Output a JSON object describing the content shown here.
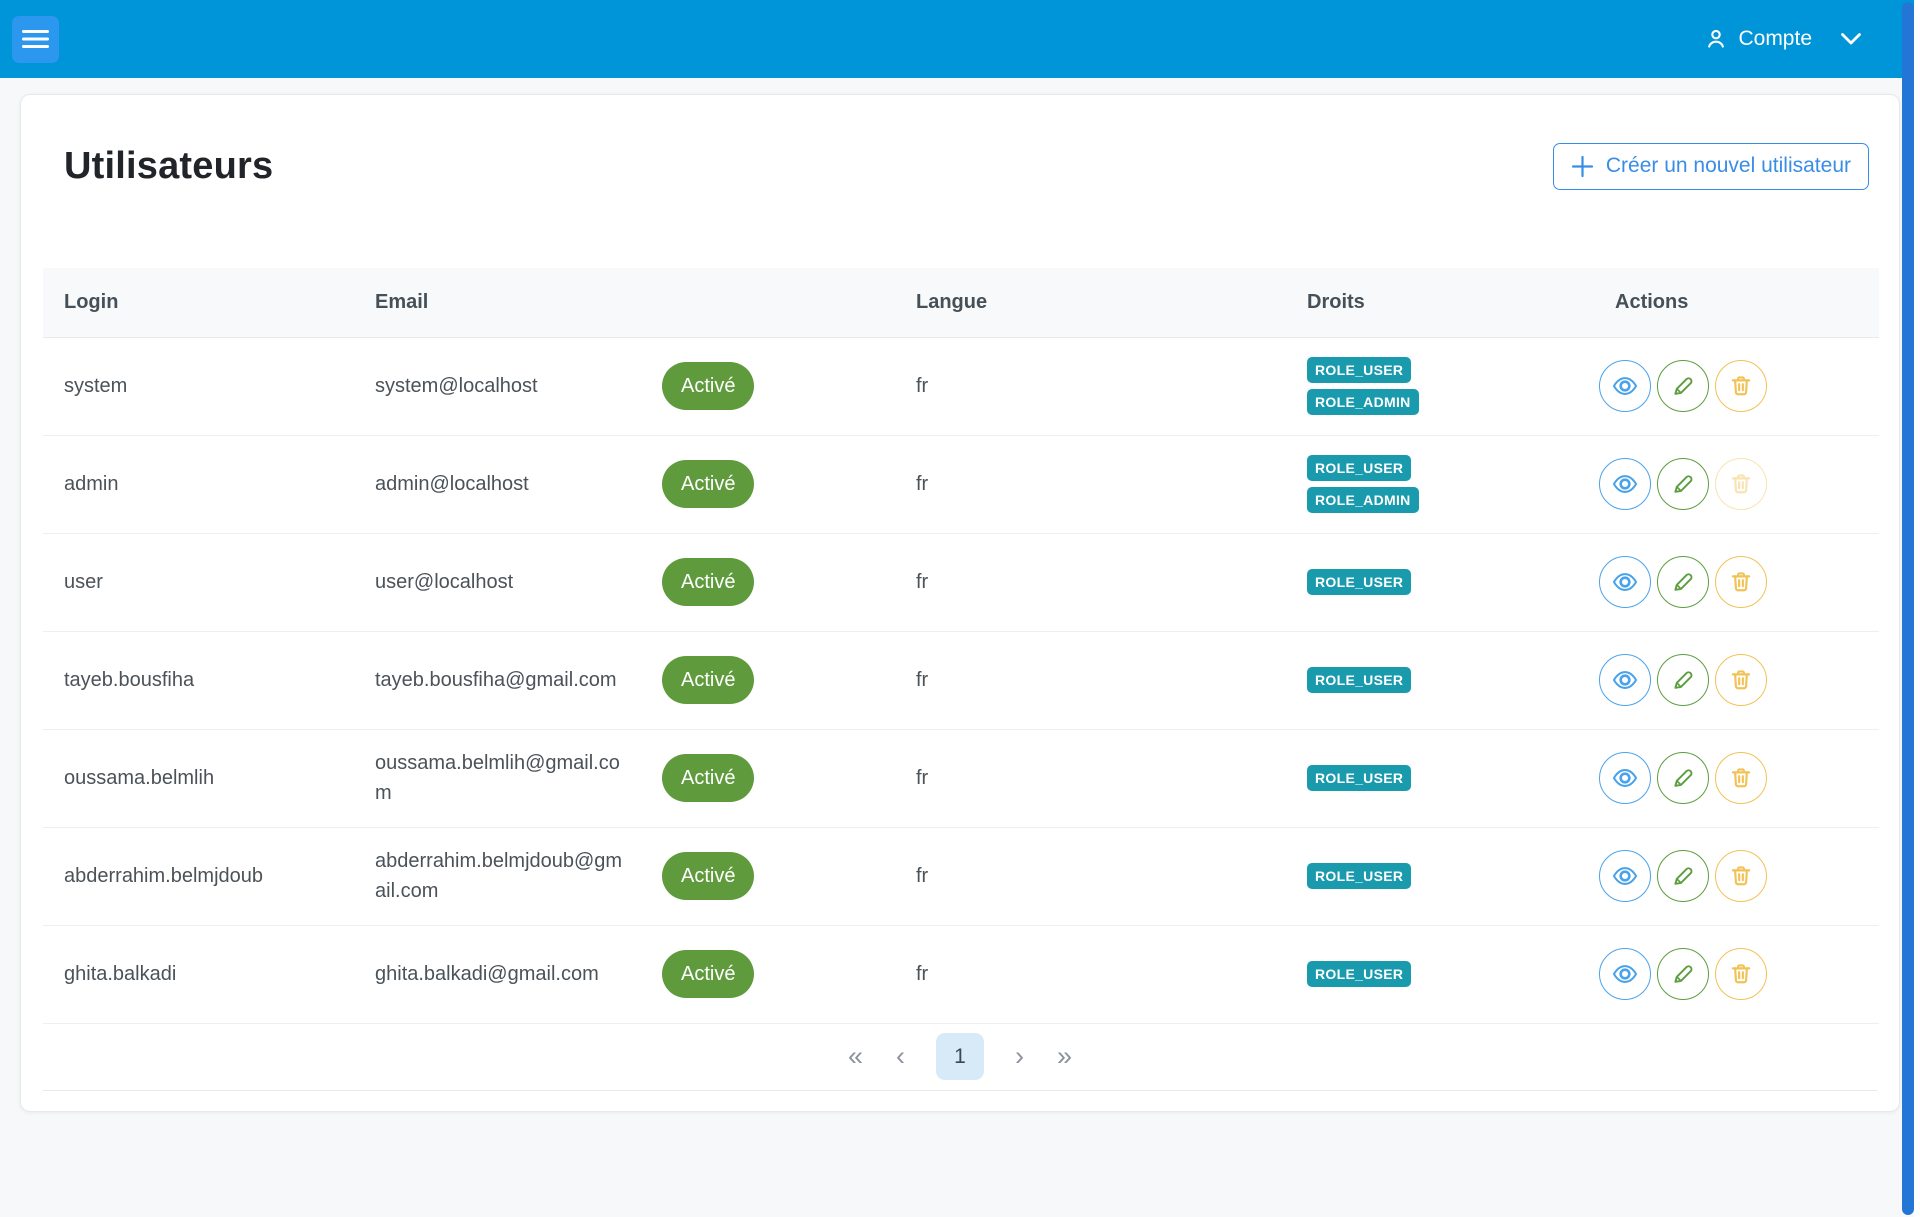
{
  "navbar": {
    "account_label": "Compte"
  },
  "page": {
    "title": "Utilisateurs",
    "create_button_label": "Créer un nouvel utilisateur"
  },
  "table": {
    "headers": {
      "login": "Login",
      "email": "Email",
      "status": "",
      "langue": "Langue",
      "droits": "Droits",
      "actions": "Actions"
    },
    "rows": [
      {
        "login": "system",
        "email": "system@localhost",
        "status": "Activé",
        "langue": "fr",
        "roles": [
          "ROLE_USER",
          "ROLE_ADMIN"
        ],
        "delete_disabled": false
      },
      {
        "login": "admin",
        "email": "admin@localhost",
        "status": "Activé",
        "langue": "fr",
        "roles": [
          "ROLE_USER",
          "ROLE_ADMIN"
        ],
        "delete_disabled": true
      },
      {
        "login": "user",
        "email": "user@localhost",
        "status": "Activé",
        "langue": "fr",
        "roles": [
          "ROLE_USER"
        ],
        "delete_disabled": false
      },
      {
        "login": "tayeb.bousfiha",
        "email": "tayeb.bousfiha@gmail.com",
        "status": "Activé",
        "langue": "fr",
        "roles": [
          "ROLE_USER"
        ],
        "delete_disabled": false
      },
      {
        "login": "oussama.belmlih",
        "email": "oussama.belmlih@gmail.com",
        "status": "Activé",
        "langue": "fr",
        "roles": [
          "ROLE_USER"
        ],
        "delete_disabled": false
      },
      {
        "login": "abderrahim.belmjdoub",
        "email": "abderrahim.belmjdoub@gmail.com",
        "status": "Activé",
        "langue": "fr",
        "roles": [
          "ROLE_USER"
        ],
        "delete_disabled": false
      },
      {
        "login": "ghita.balkadi",
        "email": "ghita.balkadi@gmail.com",
        "status": "Activé",
        "langue": "fr",
        "roles": [
          "ROLE_USER"
        ],
        "delete_disabled": false
      }
    ]
  },
  "pagination": {
    "first": "«",
    "previous": "‹",
    "pages": [
      "1"
    ],
    "active_page": "1",
    "next": "›",
    "last": "»"
  },
  "icons": {
    "menu": "hamburger-icon",
    "account": "person-icon",
    "account_caret": "chevron-down-icon",
    "create": "plus-icon",
    "view": "eye-icon",
    "edit": "pencil-icon",
    "delete": "trash-icon"
  },
  "colors": {
    "navbar_bg": "#0094d9",
    "menu_button_bg": "#2b97ef",
    "page_bg": "#f7f8f9",
    "status_active_bg": "#5f9b3c",
    "role_badge_bg": "#199aad",
    "view_button": "#4aa3ea",
    "edit_button": "#5d9e3f",
    "delete_button": "#f2c255",
    "create_button": "#3a8de6",
    "pagination_active_bg": "#d6eaf8",
    "scrollbar_thumb": "#2376d6"
  }
}
